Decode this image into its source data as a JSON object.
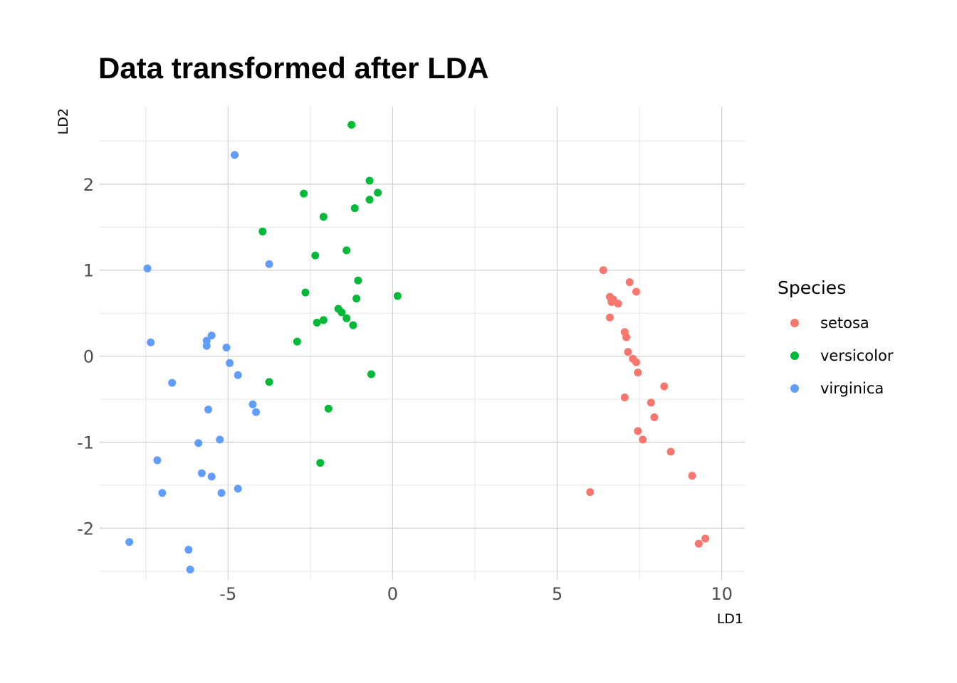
{
  "chart_data": {
    "type": "scatter",
    "title": "Data transformed after LDA",
    "xlabel": "LD1",
    "ylabel": "LD2",
    "xlim": [
      -8.9,
      10.7
    ],
    "ylim": [
      -2.6,
      2.9
    ],
    "x_ticks": [
      -5,
      0,
      5,
      10
    ],
    "y_ticks": [
      -2,
      -1,
      0,
      1,
      2
    ],
    "x_tick_labels": [
      "-5",
      "0",
      "5",
      "10"
    ],
    "y_tick_labels": [
      "-2",
      "-1",
      "0",
      "1",
      "2"
    ],
    "grid": true,
    "legend": {
      "title": "Species",
      "position": "right"
    },
    "series": [
      {
        "name": "setosa",
        "color": "#F8766D",
        "points": [
          [
            6.4,
            1.0
          ],
          [
            7.2,
            0.86
          ],
          [
            7.4,
            0.75
          ],
          [
            6.6,
            0.69
          ],
          [
            6.7,
            0.66
          ],
          [
            6.65,
            0.63
          ],
          [
            6.85,
            0.61
          ],
          [
            6.6,
            0.45
          ],
          [
            7.05,
            0.28
          ],
          [
            7.1,
            0.22
          ],
          [
            7.15,
            0.05
          ],
          [
            7.3,
            -0.03
          ],
          [
            7.4,
            -0.07
          ],
          [
            7.45,
            -0.19
          ],
          [
            8.25,
            -0.35
          ],
          [
            7.05,
            -0.48
          ],
          [
            7.85,
            -0.54
          ],
          [
            7.95,
            -0.71
          ],
          [
            7.45,
            -0.87
          ],
          [
            7.6,
            -0.97
          ],
          [
            8.45,
            -1.11
          ],
          [
            9.1,
            -1.39
          ],
          [
            6.0,
            -1.58
          ],
          [
            9.5,
            -2.12
          ],
          [
            9.3,
            -2.18
          ]
        ]
      },
      {
        "name": "versicolor",
        "color": "#00BA38",
        "points": [
          [
            -1.25,
            2.69
          ],
          [
            -0.7,
            2.04
          ],
          [
            -0.45,
            1.9
          ],
          [
            -2.7,
            1.89
          ],
          [
            -0.7,
            1.82
          ],
          [
            -1.15,
            1.72
          ],
          [
            -2.1,
            1.62
          ],
          [
            -3.95,
            1.45
          ],
          [
            -1.4,
            1.23
          ],
          [
            -2.35,
            1.17
          ],
          [
            -1.05,
            0.88
          ],
          [
            -2.65,
            0.74
          ],
          [
            0.15,
            0.7
          ],
          [
            -1.1,
            0.67
          ],
          [
            -1.65,
            0.55
          ],
          [
            -1.55,
            0.51
          ],
          [
            -1.4,
            0.44
          ],
          [
            -2.1,
            0.42
          ],
          [
            -2.3,
            0.39
          ],
          [
            -1.2,
            0.36
          ],
          [
            -2.9,
            0.17
          ],
          [
            -0.65,
            -0.21
          ],
          [
            -3.75,
            -0.3
          ],
          [
            -1.95,
            -0.61
          ],
          [
            -2.2,
            -1.24
          ]
        ]
      },
      {
        "name": "virginica",
        "color": "#619CFF",
        "points": [
          [
            -4.8,
            2.34
          ],
          [
            -7.45,
            1.02
          ],
          [
            -3.75,
            1.07
          ],
          [
            -5.5,
            0.24
          ],
          [
            -5.65,
            0.18
          ],
          [
            -7.35,
            0.16
          ],
          [
            -5.65,
            0.12
          ],
          [
            -5.05,
            0.1
          ],
          [
            -4.95,
            -0.08
          ],
          [
            -4.7,
            -0.22
          ],
          [
            -6.7,
            -0.31
          ],
          [
            -4.25,
            -0.56
          ],
          [
            -4.15,
            -0.65
          ],
          [
            -5.6,
            -0.62
          ],
          [
            -5.25,
            -0.97
          ],
          [
            -5.9,
            -1.01
          ],
          [
            -7.15,
            -1.21
          ],
          [
            -5.8,
            -1.36
          ],
          [
            -5.5,
            -1.4
          ],
          [
            -4.7,
            -1.54
          ],
          [
            -7.0,
            -1.59
          ],
          [
            -5.2,
            -1.59
          ],
          [
            -8.0,
            -2.16
          ],
          [
            -6.2,
            -2.25
          ],
          [
            -6.15,
            -2.48
          ]
        ]
      }
    ]
  }
}
